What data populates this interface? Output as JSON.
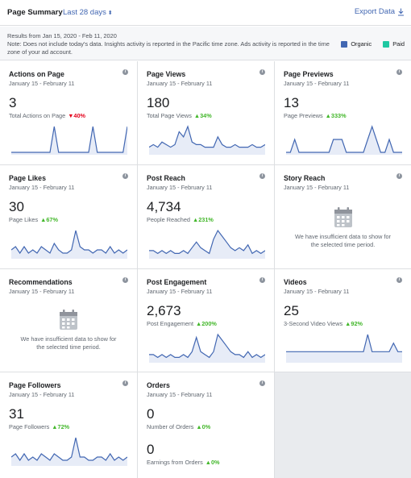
{
  "header": {
    "title": "Page Summary",
    "range": "Last 28 days",
    "export": "Export Data"
  },
  "info": {
    "results": "Results from Jan 15, 2020 - Feb 11, 2020",
    "note": "Note: Does not include today's data. Insights activity is reported in the Pacific time zone. Ads activity is reported in the time zone of your ad account.",
    "legend": [
      {
        "label": "Organic",
        "color": "#4267b2"
      },
      {
        "label": "Paid",
        "color": "#1fc8a2"
      }
    ]
  },
  "insufficient_msg_1": "We have insufficient data to show for",
  "insufficient_msg_2": "the selected time period.",
  "cards": {
    "actions": {
      "title": "Actions on Page",
      "sub": "January 15 - February 11",
      "value": "3",
      "label": "Total Actions on Page",
      "change": "40%",
      "dir": "down"
    },
    "views": {
      "title": "Page Views",
      "sub": "January 15 - February 11",
      "value": "180",
      "label": "Total Page Views",
      "change": "34%",
      "dir": "up"
    },
    "previews": {
      "title": "Page Previews",
      "sub": "January 15 - February 11",
      "value": "13",
      "label": "Page Previews",
      "change": "333%",
      "dir": "up"
    },
    "likes": {
      "title": "Page Likes",
      "sub": "January 15 - February 11",
      "value": "30",
      "label": "Page Likes",
      "change": "67%",
      "dir": "up"
    },
    "reach": {
      "title": "Post Reach",
      "sub": "January 15 - February 11",
      "value": "4,734",
      "label": "People Reached",
      "change": "231%",
      "dir": "up"
    },
    "story": {
      "title": "Story Reach",
      "sub": "January 15 - February 11"
    },
    "recs": {
      "title": "Recommendations",
      "sub": "January 15 - February 11"
    },
    "engage": {
      "title": "Post Engagement",
      "sub": "January 15 - February 11",
      "value": "2,673",
      "label": "Post Engagement",
      "change": "200%",
      "dir": "up"
    },
    "videos": {
      "title": "Videos",
      "sub": "January 15 - February 11",
      "value": "25",
      "label": "3-Second Video Views",
      "change": "92%",
      "dir": "up"
    },
    "followers": {
      "title": "Page Followers",
      "sub": "January 15 - February 11",
      "value": "31",
      "label": "Page Followers",
      "change": "72%",
      "dir": "up"
    },
    "orders": {
      "title": "Orders",
      "sub": "January 15 - February 11",
      "value": "0",
      "label": "Number of Orders",
      "change": "0%",
      "dir": "up",
      "value2": "0",
      "label2": "Earnings from Orders",
      "change2": "0%",
      "dir2": "up"
    }
  },
  "sparklines": {
    "actions": [
      0,
      0,
      0,
      0,
      0,
      0,
      0,
      0,
      0,
      0,
      1,
      0,
      0,
      0,
      0,
      0,
      0,
      0,
      0,
      1,
      0,
      0,
      0,
      0,
      0,
      0,
      0,
      1
    ],
    "views": [
      2,
      3,
      2,
      4,
      3,
      2,
      3,
      8,
      6,
      10,
      4,
      3,
      3,
      2,
      2,
      2,
      6,
      3,
      2,
      2,
      3,
      2,
      2,
      2,
      3,
      2,
      2,
      3
    ],
    "previews": [
      0,
      0,
      1,
      0,
      0,
      0,
      0,
      0,
      0,
      0,
      0,
      1,
      1,
      1,
      0,
      0,
      0,
      0,
      0,
      1,
      2,
      1,
      0,
      0,
      1,
      0,
      0,
      0
    ],
    "likes": [
      2,
      3,
      1,
      3,
      1,
      2,
      1,
      3,
      2,
      1,
      4,
      2,
      1,
      1,
      2,
      8,
      3,
      2,
      2,
      1,
      2,
      2,
      1,
      3,
      1,
      2,
      1,
      2
    ],
    "reach": [
      2,
      2,
      1,
      2,
      1,
      2,
      1,
      1,
      2,
      1,
      3,
      5,
      3,
      2,
      1,
      6,
      9,
      7,
      5,
      3,
      2,
      3,
      2,
      4,
      1,
      2,
      1,
      2
    ],
    "engage": [
      2,
      2,
      1,
      2,
      1,
      2,
      1,
      1,
      2,
      1,
      3,
      8,
      3,
      2,
      1,
      3,
      9,
      7,
      5,
      3,
      2,
      2,
      1,
      3,
      1,
      2,
      1,
      2
    ],
    "videos": [
      2,
      2,
      2,
      2,
      2,
      2,
      2,
      2,
      2,
      2,
      2,
      2,
      2,
      2,
      2,
      2,
      2,
      2,
      2,
      6,
      2,
      2,
      2,
      2,
      2,
      4,
      2,
      2
    ],
    "followers": [
      2,
      3,
      1,
      3,
      1,
      2,
      1,
      3,
      2,
      1,
      3,
      2,
      1,
      1,
      2,
      8,
      2,
      2,
      1,
      1,
      2,
      2,
      1,
      3,
      1,
      2,
      1,
      2
    ]
  }
}
